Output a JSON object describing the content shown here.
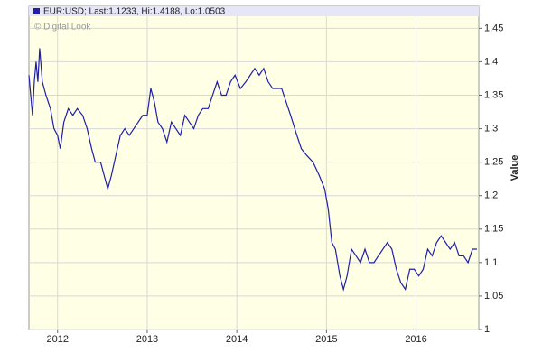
{
  "chart_data": {
    "type": "line",
    "watermark": "© Digital Look",
    "y_label": "Value",
    "xlim": [
      2011.68,
      2016.7
    ],
    "xticks": [
      2012,
      2013,
      2014,
      2015,
      2016
    ],
    "ylim": [
      1,
      1.468
    ],
    "yticks": [
      1,
      1.05,
      1.1,
      1.15,
      1.2,
      1.25,
      1.3,
      1.35,
      1.4,
      1.45
    ],
    "grid": true,
    "x": [
      2011.68,
      2011.7,
      2011.72,
      2011.74,
      2011.76,
      2011.78,
      2011.8,
      2011.83,
      2011.87,
      2011.92,
      2011.96,
      2012.0,
      2012.03,
      2012.07,
      2012.12,
      2012.17,
      2012.22,
      2012.28,
      2012.33,
      2012.38,
      2012.42,
      2012.48,
      2012.52,
      2012.56,
      2012.6,
      2012.65,
      2012.7,
      2012.75,
      2012.8,
      2012.85,
      2012.9,
      2012.95,
      2013.0,
      2013.04,
      2013.08,
      2013.12,
      2013.17,
      2013.22,
      2013.27,
      2013.32,
      2013.37,
      2013.42,
      2013.47,
      2013.52,
      2013.57,
      2013.62,
      2013.68,
      2013.73,
      2013.78,
      2013.83,
      2013.88,
      2013.93,
      2013.98,
      2014.04,
      2014.1,
      2014.15,
      2014.2,
      2014.25,
      2014.3,
      2014.35,
      2014.4,
      2014.45,
      2014.5,
      2014.55,
      2014.6,
      2014.67,
      2014.72,
      2014.78,
      2014.85,
      2014.92,
      2014.98,
      2015.02,
      2015.06,
      2015.1,
      2015.15,
      2015.19,
      2015.23,
      2015.28,
      2015.33,
      2015.38,
      2015.43,
      2015.48,
      2015.53,
      2015.58,
      2015.63,
      2015.68,
      2015.73,
      2015.78,
      2015.83,
      2015.88,
      2015.93,
      2015.98,
      2016.03,
      2016.08,
      2016.13,
      2016.18,
      2016.23,
      2016.28,
      2016.33,
      2016.38,
      2016.43,
      2016.48,
      2016.53,
      2016.58,
      2016.63,
      2016.68
    ],
    "series": [
      {
        "name": "EUR:USD; Last:1.1233, Hi:1.4188, Lo:1.0503",
        "color": "#1f1fa8",
        "values": [
          1.38,
          1.35,
          1.32,
          1.37,
          1.4,
          1.37,
          1.42,
          1.37,
          1.35,
          1.33,
          1.3,
          1.29,
          1.27,
          1.31,
          1.33,
          1.32,
          1.33,
          1.32,
          1.3,
          1.27,
          1.25,
          1.25,
          1.23,
          1.21,
          1.23,
          1.26,
          1.29,
          1.3,
          1.29,
          1.3,
          1.31,
          1.32,
          1.32,
          1.36,
          1.34,
          1.31,
          1.3,
          1.28,
          1.31,
          1.3,
          1.29,
          1.32,
          1.31,
          1.3,
          1.32,
          1.33,
          1.33,
          1.35,
          1.37,
          1.35,
          1.35,
          1.37,
          1.38,
          1.36,
          1.37,
          1.38,
          1.39,
          1.38,
          1.39,
          1.37,
          1.36,
          1.36,
          1.36,
          1.34,
          1.32,
          1.29,
          1.27,
          1.26,
          1.25,
          1.23,
          1.21,
          1.18,
          1.13,
          1.12,
          1.08,
          1.06,
          1.08,
          1.12,
          1.11,
          1.1,
          1.12,
          1.1,
          1.1,
          1.11,
          1.12,
          1.13,
          1.12,
          1.09,
          1.07,
          1.06,
          1.09,
          1.09,
          1.08,
          1.09,
          1.12,
          1.11,
          1.13,
          1.14,
          1.13,
          1.12,
          1.13,
          1.11,
          1.11,
          1.1,
          1.12,
          1.12
        ]
      }
    ]
  }
}
